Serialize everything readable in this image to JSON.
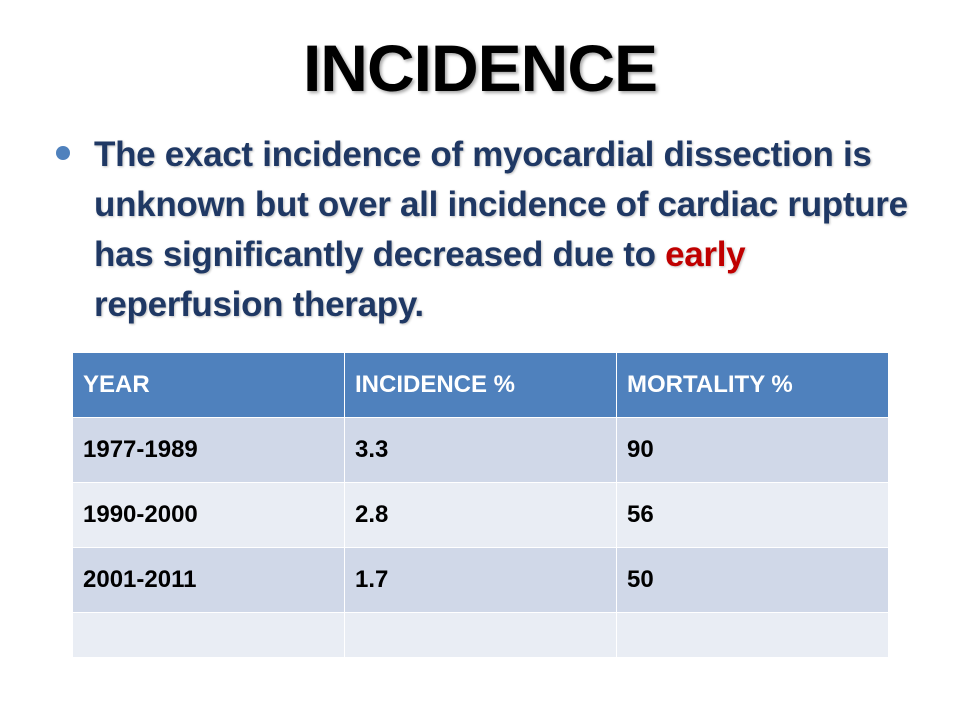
{
  "slide": {
    "title": "INCIDENCE",
    "bullet": {
      "part1": "The exact incidence of myocardial dissection is unknown but over all incidence of cardiac rupture  has significantly decreased due to ",
      "highlight": "early",
      "part2": " reperfusion therapy."
    },
    "colors": {
      "header_fill": "#4f81bd",
      "bullet_text": "#1f3864",
      "highlight_text": "#c00000",
      "row_odd": "#d0d8e8",
      "row_even": "#e9edf4"
    }
  },
  "table": {
    "headers": [
      "YEAR",
      "INCIDENCE %",
      "MORTALITY %"
    ],
    "rows": [
      [
        "1977-1989",
        "3.3",
        "90"
      ],
      [
        "1990-2000",
        "2.8",
        "56"
      ],
      [
        "2001-2011",
        "1.7",
        "50"
      ],
      [
        "",
        "",
        ""
      ]
    ]
  }
}
